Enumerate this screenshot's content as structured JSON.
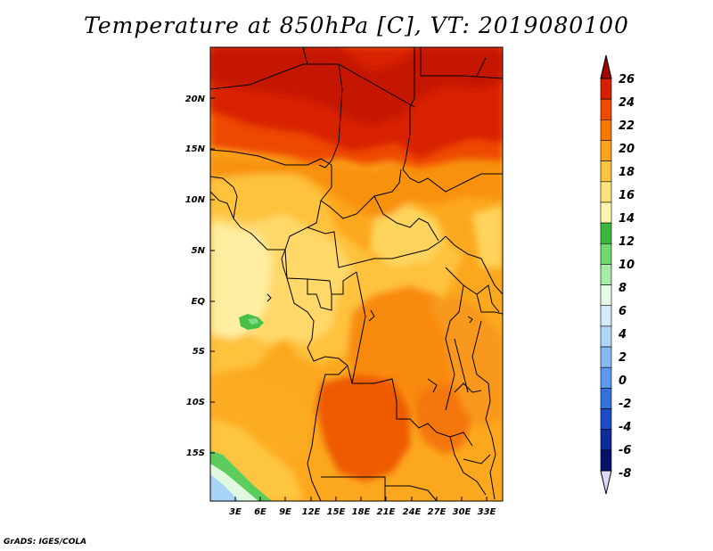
{
  "title": "Temperature at 850hPa [C], VT: 2019080100",
  "credit": "GrADS: IGES/COLA",
  "map": {
    "region": "Central and Southern Africa",
    "lat_labels": [
      "20N",
      "15N",
      "10N",
      "5N",
      "EQ",
      "5S",
      "10S",
      "15S"
    ],
    "lon_labels": [
      "3E",
      "6E",
      "9E",
      "12E",
      "15E",
      "18E",
      "21E",
      "24E",
      "27E",
      "30E",
      "33E"
    ]
  },
  "colorbar": {
    "labels": [
      "26",
      "24",
      "22",
      "20",
      "18",
      "16",
      "14",
      "12",
      "10",
      "8",
      "6",
      "4",
      "2",
      "0",
      "-2",
      "-4",
      "-6",
      "-8"
    ],
    "colors": [
      "#a50000",
      "#d82000",
      "#ee4a00",
      "#f87a00",
      "#fca21c",
      "#fec640",
      "#ffe27a",
      "#fff5b0",
      "#3cb93c",
      "#6fd86f",
      "#a6eca6",
      "#e4fae4",
      "#d4ecfe",
      "#b0d6fa",
      "#86baf4",
      "#5c98ec",
      "#3470dc",
      "#1a4cc4",
      "#0c2c9c",
      "#06126a",
      "#dcdcf8"
    ]
  }
}
